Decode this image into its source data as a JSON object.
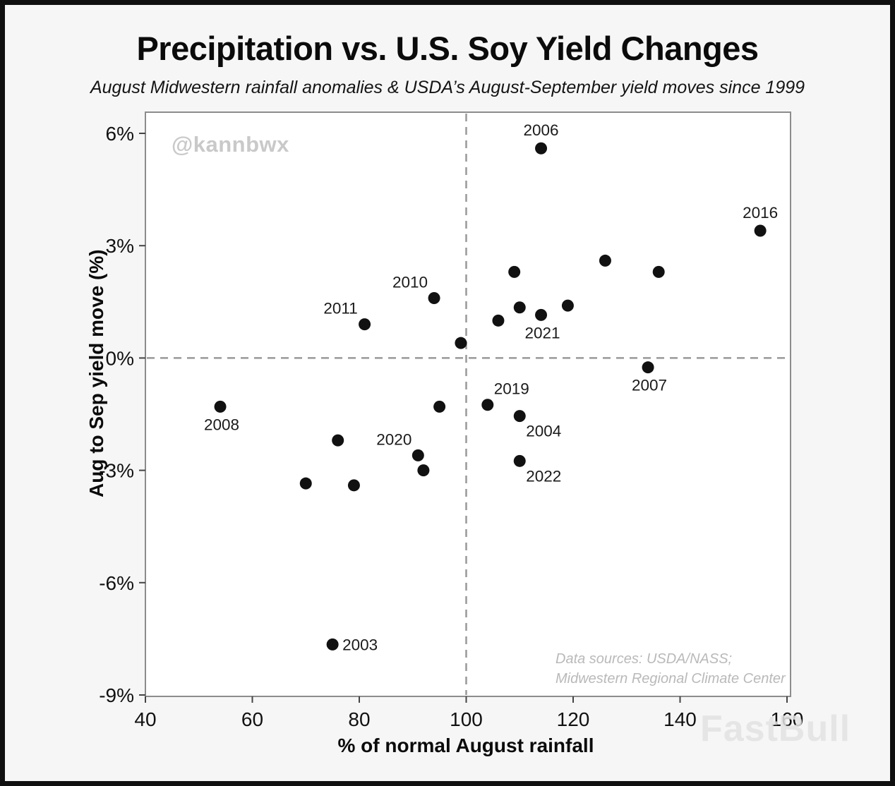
{
  "header": {
    "title": "Precipitation vs. U.S. Soy Yield Changes",
    "subtitle": "August Midwestern rainfall anomalies & USDA’s August-September yield moves since 1999"
  },
  "watermark": "@kannbwx",
  "source_note": {
    "line1": "Data sources: USDA/NASS;",
    "line2": "Midwestern Regional Climate Center"
  },
  "brand_watermark": "FastBull",
  "chart_data": {
    "type": "scatter",
    "title": "Precipitation vs. U.S. Soy Yield Changes",
    "subtitle": "August Midwestern rainfall anomalies & USDA’s August-September yield moves since 1999",
    "xlabel": "% of normal August rainfall",
    "ylabel": "Aug to Sep yield move (%)",
    "xlim": [
      40,
      160
    ],
    "ylim": [
      -9,
      6
    ],
    "x_ticks": [
      40,
      60,
      80,
      100,
      120,
      140,
      160
    ],
    "y_ticks": [
      6,
      3,
      0,
      -3,
      -6,
      -9
    ],
    "y_tick_labels": [
      "6%",
      "3%",
      "0%",
      "-3%",
      "-6%",
      "-9%"
    ],
    "grid": false,
    "legend": "none",
    "point_color": "#111111",
    "reference_lines": {
      "x": 100,
      "y": 0
    },
    "points": [
      {
        "x": 114,
        "y": 5.6,
        "label": "2006",
        "label_pos": "top"
      },
      {
        "x": 155,
        "y": 3.4,
        "label": "2016",
        "label_pos": "top"
      },
      {
        "x": 126,
        "y": 2.6,
        "label": null
      },
      {
        "x": 136,
        "y": 2.3,
        "label": null
      },
      {
        "x": 109,
        "y": 2.3,
        "label": null
      },
      {
        "x": 94,
        "y": 1.6,
        "label": "2010",
        "label_pos": "top-left"
      },
      {
        "x": 119,
        "y": 1.4,
        "label": null
      },
      {
        "x": 110,
        "y": 1.35,
        "label": null
      },
      {
        "x": 114,
        "y": 1.15,
        "label": "2021",
        "label_pos": "bottom"
      },
      {
        "x": 106,
        "y": 1.0,
        "label": null
      },
      {
        "x": 81,
        "y": 0.9,
        "label": "2011",
        "label_pos": "top-left"
      },
      {
        "x": 99,
        "y": 0.4,
        "label": null
      },
      {
        "x": 134,
        "y": -0.25,
        "label": "2007",
        "label_pos": "bottom"
      },
      {
        "x": 104,
        "y": -1.25,
        "label": "2019",
        "label_pos": "top-right"
      },
      {
        "x": 54,
        "y": -1.3,
        "label": "2008",
        "label_pos": "bottom"
      },
      {
        "x": 95,
        "y": -1.3,
        "label": null
      },
      {
        "x": 110,
        "y": -1.55,
        "label": "2004",
        "label_pos": "bottom-right"
      },
      {
        "x": 76,
        "y": -2.2,
        "label": null
      },
      {
        "x": 91,
        "y": -2.6,
        "label": "2020",
        "label_pos": "top-left"
      },
      {
        "x": 92,
        "y": -3.0,
        "label": null
      },
      {
        "x": 110,
        "y": -2.75,
        "label": "2022",
        "label_pos": "bottom-right"
      },
      {
        "x": 70,
        "y": -3.35,
        "label": null
      },
      {
        "x": 79,
        "y": -3.4,
        "label": null
      },
      {
        "x": 75,
        "y": -7.65,
        "label": "2003",
        "label_pos": "right"
      }
    ]
  }
}
